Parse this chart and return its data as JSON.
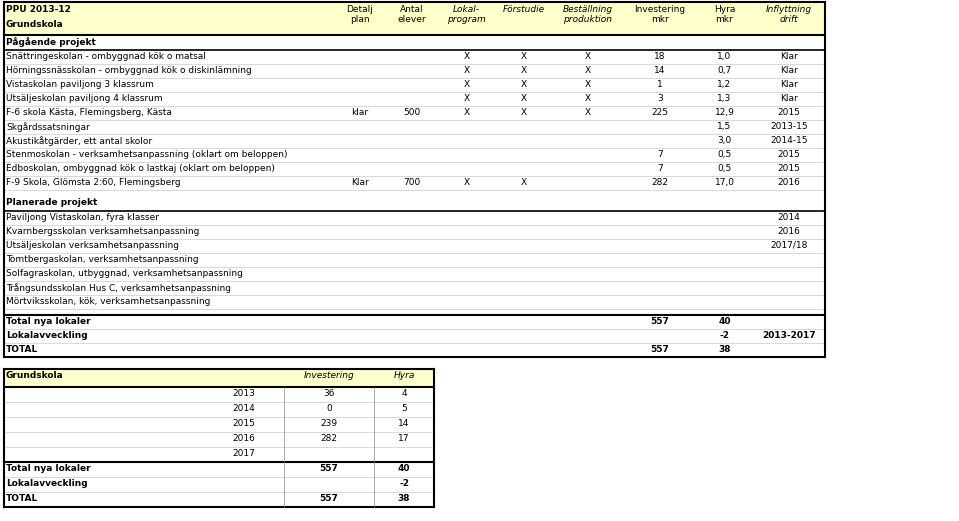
{
  "header_cols": [
    "Detalj\nplan",
    "Antal\nelever",
    "Lokal-\nprogram",
    "Förstudie",
    "Beställning\nproduktion",
    "Investering\nmkr",
    "Hyra\nmkr",
    "Inflyttning\ndrift"
  ],
  "header_col_italic": [
    false,
    false,
    true,
    true,
    true,
    false,
    false,
    true
  ],
  "bg_header": "#ffffcc",
  "section1_label": "Pågående projekt",
  "rows_pagaende": [
    [
      "Snättringeskolan - ombyggnad kök o matsal",
      "",
      "",
      "X",
      "X",
      "X",
      "18",
      "1,0",
      "Klar"
    ],
    [
      "Hörningssnässkolan - ombyggnad kök o diskinlämning",
      "",
      "",
      "X",
      "X",
      "X",
      "14",
      "0,7",
      "Klar"
    ],
    [
      "Vistaskolan paviljong 3 klassrum",
      "",
      "",
      "X",
      "X",
      "X",
      "1",
      "1,2",
      "Klar"
    ],
    [
      "Utsäljeskolan paviljong 4 klassrum",
      "",
      "",
      "X",
      "X",
      "X",
      "3",
      "1,3",
      "Klar"
    ],
    [
      "F-6 skola Kästa, Flemingsberg, Kästa",
      "klar",
      "500",
      "X",
      "X",
      "X",
      "225",
      "12,9",
      "2015"
    ],
    [
      "Skgårdssatsningar",
      "",
      "",
      "",
      "",
      "",
      "",
      "1,5",
      "2013-15"
    ],
    [
      "Akustikåtgärder, ett antal skolor",
      "",
      "",
      "",
      "",
      "",
      "",
      "3,0",
      "2014-15"
    ],
    [
      "Stenmoskolan - verksamhetsanpassning (oklart om beloppen)",
      "",
      "",
      "",
      "",
      "",
      "7",
      "0,5",
      "2015"
    ],
    [
      "Edboskolan, ombyggnad kök o lastkaj (oklart om beloppen)",
      "",
      "",
      "",
      "",
      "",
      "7",
      "0,5",
      "2015"
    ],
    [
      "F-9 Skola, Glömsta 2:60, Flemingsberg",
      "Klar",
      "700",
      "X",
      "X",
      "",
      "282",
      "17,0",
      "2016"
    ]
  ],
  "section2_label": "Planerade projekt",
  "rows_planerade": [
    [
      "Paviljong Vistaskolan, fyra klasser",
      "",
      "",
      "",
      "",
      "",
      "",
      "",
      "2014"
    ],
    [
      "Kvarnbergsskolan verksamhetsanpassning",
      "",
      "",
      "",
      "",
      "",
      "",
      "",
      "2016"
    ],
    [
      "Utsäljeskolan verksamhetsanpassning",
      "",
      "",
      "",
      "",
      "",
      "",
      "",
      "2017/18"
    ],
    [
      "Tomtbergaskolan, verksamhetsanpassning",
      "",
      "",
      "",
      "",
      "",
      "",
      "",
      ""
    ],
    [
      "Solfagraskolan, utbyggnad, verksamhetsanpassning",
      "",
      "",
      "",
      "",
      "",
      "",
      "",
      ""
    ],
    [
      "Trångsundsskolan Hus C, verksamhetsanpassning",
      "",
      "",
      "",
      "",
      "",
      "",
      "",
      ""
    ],
    [
      "Mörtviksskolan, kök, verksamhetsanpassning",
      "",
      "",
      "",
      "",
      "",
      "",
      "",
      ""
    ]
  ],
  "total_rows": [
    [
      "Total nya lokaler",
      "",
      "",
      "",
      "",
      "",
      "557",
      "40",
      ""
    ],
    [
      "Lokalavveckling",
      "",
      "",
      "",
      "",
      "",
      "",
      "-2",
      "2013-2017"
    ],
    [
      "TOTAL",
      "",
      "",
      "",
      "",
      "",
      "557",
      "38",
      ""
    ]
  ],
  "subtable_header": [
    "Grundskola",
    "",
    "Investering",
    "Hyra"
  ],
  "subtable_rows": [
    [
      "",
      "2013",
      "36",
      "4"
    ],
    [
      "",
      "2014",
      "0",
      "5"
    ],
    [
      "",
      "2015",
      "239",
      "14"
    ],
    [
      "",
      "2016",
      "282",
      "17"
    ],
    [
      "",
      "2017",
      "",
      ""
    ]
  ],
  "subtable_total_rows": [
    [
      "Total nya lokaler",
      "",
      "557",
      "40"
    ],
    [
      "Lokalavveckling",
      "",
      "",
      "-2"
    ],
    [
      "TOTAL",
      "",
      "557",
      "38"
    ]
  ],
  "fig_width": 9.59,
  "fig_height": 5.21,
  "dpi": 100
}
